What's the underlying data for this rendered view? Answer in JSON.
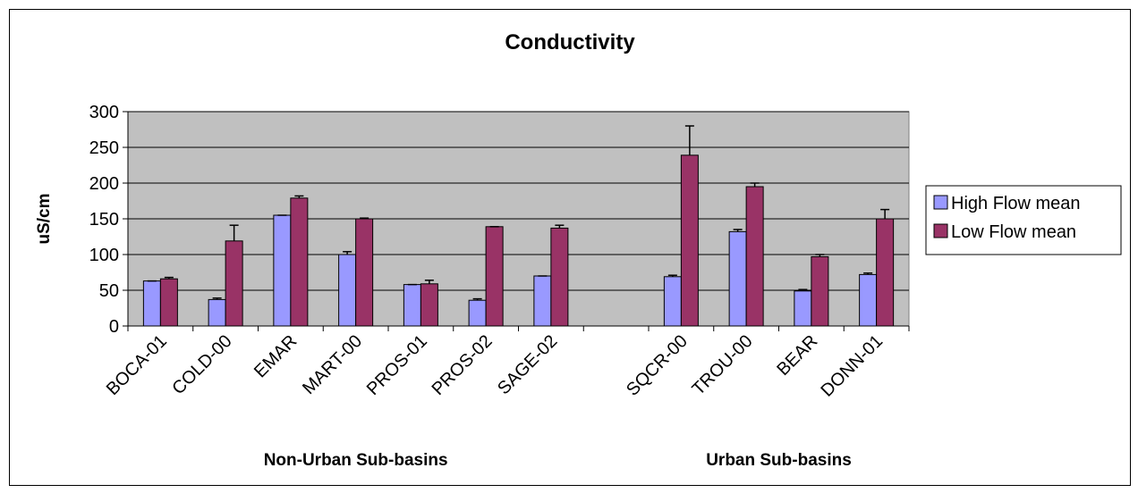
{
  "chart_data": {
    "type": "bar",
    "title": "Conductivity",
    "ylabel": "uS/cm",
    "ylim": [
      0,
      300
    ],
    "yticks": [
      0,
      50,
      100,
      150,
      200,
      250,
      300
    ],
    "categories": [
      "BOCA-01",
      "COLD-00",
      "EMAR",
      "MART-00",
      "PROS-01",
      "PROS-02",
      "SAGE-02",
      "",
      "SQCR-00",
      "TROU-00",
      "BEAR",
      "DONN-01"
    ],
    "groups": [
      {
        "label": "Non-Urban Sub-basins",
        "from": 0,
        "to": 6
      },
      {
        "label": "Urban Sub-basins",
        "from": 8,
        "to": 11
      }
    ],
    "series": [
      {
        "name": "High Flow mean",
        "color": "#9999ff",
        "values": [
          63,
          37,
          155,
          100,
          58,
          36,
          70,
          null,
          69,
          132,
          49,
          72
        ],
        "errors": [
          0,
          2,
          0,
          4,
          0,
          2,
          0,
          null,
          2,
          3,
          2,
          2
        ]
      },
      {
        "name": "Low Flow mean",
        "color": "#993366",
        "values": [
          66,
          119,
          179,
          150,
          59,
          139,
          137,
          null,
          239,
          195,
          97,
          150
        ],
        "errors": [
          2,
          22,
          3,
          1,
          5,
          0,
          4,
          null,
          41,
          5,
          3,
          13
        ]
      }
    ],
    "grid": true,
    "plot_background": "#c0c0c0",
    "legend_position": "right"
  }
}
